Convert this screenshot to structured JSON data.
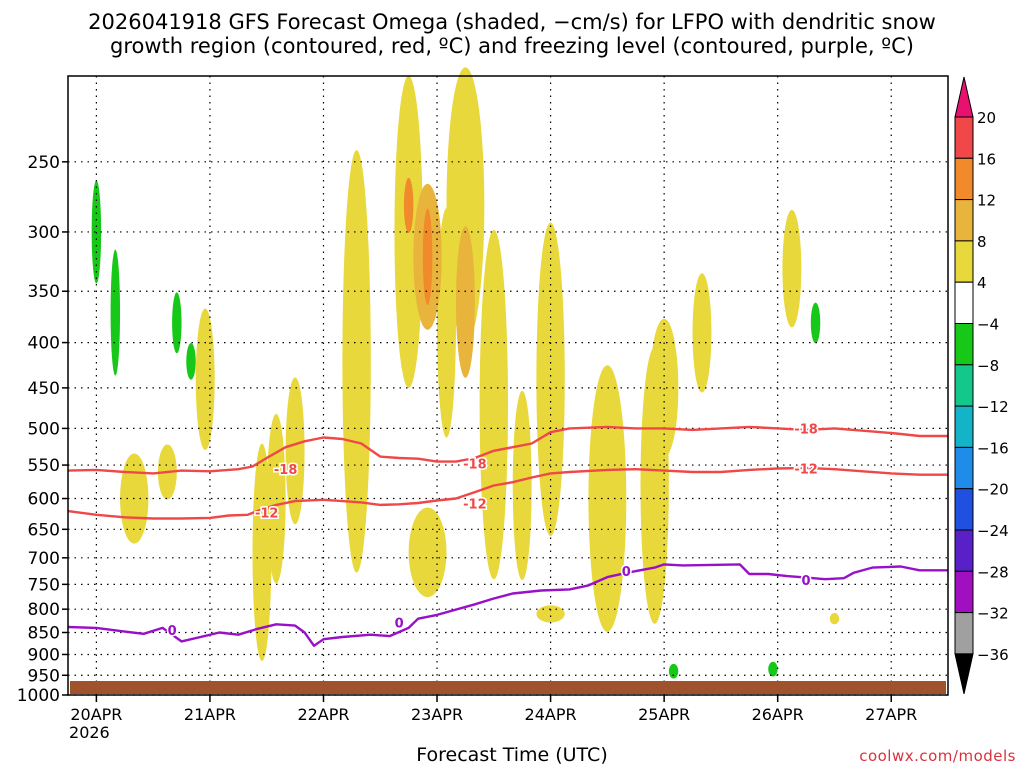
{
  "chart_data": {
    "type": "heatmap",
    "title_line1": "2026041918 GFS Forecast Omega (shaded, −cm/s) for LFPO with dendritic snow",
    "title_line2": "growth region (contoured, red, ºC) and freezing level (contoured, purple, ºC)",
    "xlabel": "Forecast Time (UTC)",
    "credit": "coolwx.com/models",
    "ylim": [
      1000,
      200
    ],
    "y_ticks": [
      250,
      300,
      350,
      400,
      450,
      500,
      550,
      600,
      650,
      700,
      750,
      800,
      850,
      900,
      950,
      1000
    ],
    "x_ticks": [
      {
        "t": 0,
        "label": "20APR",
        "sub": "2026"
      },
      {
        "t": 24,
        "label": "21APR",
        "sub": ""
      },
      {
        "t": 48,
        "label": "22APR",
        "sub": ""
      },
      {
        "t": 72,
        "label": "23APR",
        "sub": ""
      },
      {
        "t": 96,
        "label": "24APR",
        "sub": ""
      },
      {
        "t": 120,
        "label": "25APR",
        "sub": ""
      },
      {
        "t": 144,
        "label": "26APR",
        "sub": ""
      },
      {
        "t": 168,
        "label": "27APR",
        "sub": ""
      }
    ],
    "xlim": [
      -6,
      180
    ],
    "colorbar": {
      "levels": [
        "20",
        "16",
        "12",
        "8",
        "4",
        "−4",
        "−8",
        "−12",
        "−16",
        "−20",
        "−24",
        "−28",
        "−32",
        "−36"
      ],
      "colors": [
        "#e8116f",
        "#f04848",
        "#f08a2a",
        "#e8b43c",
        "#e8d83c",
        "#ffffff",
        "#18c818",
        "#14c88c",
        "#14b4c8",
        "#1e8ce8",
        "#2050e0",
        "#5a20c8",
        "#a010c0",
        "#a0a0a0",
        "#000000"
      ]
    },
    "series": [
      {
        "name": "-18",
        "color": "#f04848",
        "points": [
          [
            -6,
            558
          ],
          [
            0,
            557
          ],
          [
            6,
            560
          ],
          [
            12,
            562
          ],
          [
            18,
            558
          ],
          [
            24,
            559
          ],
          [
            30,
            556
          ],
          [
            33,
            552
          ],
          [
            36,
            540
          ],
          [
            40,
            525
          ],
          [
            44,
            517
          ],
          [
            48,
            512
          ],
          [
            52,
            514
          ],
          [
            56,
            520
          ],
          [
            60,
            538
          ],
          [
            64,
            540
          ],
          [
            68,
            541
          ],
          [
            72,
            545
          ],
          [
            76,
            545
          ],
          [
            80,
            540
          ],
          [
            84,
            530
          ],
          [
            88,
            525
          ],
          [
            92,
            520
          ],
          [
            96,
            505
          ],
          [
            100,
            500
          ],
          [
            108,
            498
          ],
          [
            114,
            500
          ],
          [
            120,
            500
          ],
          [
            126,
            502
          ],
          [
            132,
            500
          ],
          [
            138,
            498
          ],
          [
            144,
            500
          ],
          [
            150,
            502
          ],
          [
            156,
            500
          ],
          [
            162,
            503
          ],
          [
            168,
            506
          ],
          [
            174,
            510
          ],
          [
            180,
            510
          ]
        ],
        "labels": [
          [
            40,
            556
          ],
          [
            80,
            548
          ],
          [
            150,
            500
          ]
        ]
      },
      {
        "name": "-12",
        "color": "#f04848",
        "points": [
          [
            -6,
            620
          ],
          [
            0,
            626
          ],
          [
            6,
            630
          ],
          [
            12,
            632
          ],
          [
            18,
            632
          ],
          [
            24,
            631
          ],
          [
            28,
            627
          ],
          [
            32,
            626
          ],
          [
            34,
            620
          ],
          [
            38,
            610
          ],
          [
            42,
            604
          ],
          [
            48,
            602
          ],
          [
            52,
            604
          ],
          [
            56,
            606
          ],
          [
            60,
            610
          ],
          [
            64,
            609
          ],
          [
            68,
            607
          ],
          [
            72,
            603
          ],
          [
            76,
            600
          ],
          [
            80,
            590
          ],
          [
            84,
            580
          ],
          [
            88,
            575
          ],
          [
            92,
            568
          ],
          [
            96,
            562
          ],
          [
            100,
            560
          ],
          [
            108,
            557
          ],
          [
            114,
            556
          ],
          [
            120,
            558
          ],
          [
            126,
            560
          ],
          [
            132,
            560
          ],
          [
            138,
            557
          ],
          [
            144,
            555
          ],
          [
            150,
            554
          ],
          [
            156,
            556
          ],
          [
            162,
            559
          ],
          [
            168,
            562
          ],
          [
            174,
            564
          ],
          [
            180,
            564
          ]
        ],
        "labels": [
          [
            36,
            622
          ],
          [
            80,
            608
          ],
          [
            150,
            555
          ]
        ]
      },
      {
        "name": "0",
        "color": "#9810c8",
        "points": [
          [
            -6,
            838
          ],
          [
            0,
            840
          ],
          [
            6,
            848
          ],
          [
            10,
            853
          ],
          [
            14,
            840
          ],
          [
            18,
            870
          ],
          [
            22,
            860
          ],
          [
            26,
            850
          ],
          [
            30,
            855
          ],
          [
            34,
            842
          ],
          [
            38,
            832
          ],
          [
            42,
            835
          ],
          [
            44,
            850
          ],
          [
            46,
            880
          ],
          [
            48,
            865
          ],
          [
            52,
            860
          ],
          [
            58,
            855
          ],
          [
            62,
            858
          ],
          [
            66,
            840
          ],
          [
            68,
            820
          ],
          [
            72,
            812
          ],
          [
            80,
            790
          ],
          [
            84,
            778
          ],
          [
            88,
            768
          ],
          [
            94,
            762
          ],
          [
            100,
            760
          ],
          [
            104,
            752
          ],
          [
            108,
            736
          ],
          [
            112,
            728
          ],
          [
            118,
            718
          ],
          [
            120,
            712
          ],
          [
            124,
            714
          ],
          [
            130,
            713
          ],
          [
            136,
            712
          ],
          [
            138,
            730
          ],
          [
            142,
            730
          ],
          [
            146,
            734
          ],
          [
            150,
            737
          ],
          [
            154,
            740
          ],
          [
            158,
            738
          ],
          [
            160,
            728
          ],
          [
            164,
            718
          ],
          [
            170,
            716
          ],
          [
            174,
            723
          ],
          [
            180,
            723
          ]
        ],
        "labels": [
          [
            16,
            845
          ],
          [
            64,
            828
          ],
          [
            112,
            724
          ],
          [
            150,
            742
          ]
        ]
      }
    ],
    "shaded_regions": [
      {
        "level": "4",
        "cx": 55,
        "cy": 420,
        "rx": 3,
        "ry": 210
      },
      {
        "level": "4",
        "cx": 66,
        "cy": 300,
        "rx": 3,
        "ry": 150
      },
      {
        "level": "4",
        "cx": 74,
        "cy": 380,
        "rx": 2,
        "ry": 110
      },
      {
        "level": "4",
        "cx": 78,
        "cy": 280,
        "rx": 4,
        "ry": 130
      },
      {
        "level": "4",
        "cx": 84,
        "cy": 470,
        "rx": 3,
        "ry": 200
      },
      {
        "level": "4",
        "cx": 96,
        "cy": 440,
        "rx": 3,
        "ry": 170
      },
      {
        "level": "4",
        "cx": 108,
        "cy": 600,
        "rx": 4,
        "ry": 200
      },
      {
        "level": "4",
        "cx": 118,
        "cy": 580,
        "rx": 3,
        "ry": 200
      },
      {
        "level": "4",
        "cx": 120,
        "cy": 450,
        "rx": 3,
        "ry": 80
      },
      {
        "level": "4",
        "cx": 128,
        "cy": 390,
        "rx": 2,
        "ry": 60
      },
      {
        "level": "4",
        "cx": 147,
        "cy": 330,
        "rx": 2,
        "ry": 50
      },
      {
        "level": "4",
        "cx": 8,
        "cy": 600,
        "rx": 3,
        "ry": 70
      },
      {
        "level": "4",
        "cx": 15,
        "cy": 560,
        "rx": 2,
        "ry": 40
      },
      {
        "level": "4",
        "cx": 23,
        "cy": 440,
        "rx": 2,
        "ry": 80
      },
      {
        "level": "4",
        "cx": 35,
        "cy": 690,
        "rx": 2,
        "ry": 190
      },
      {
        "level": "4",
        "cx": 38,
        "cy": 600,
        "rx": 2,
        "ry": 130
      },
      {
        "level": "4",
        "cx": 42,
        "cy": 530,
        "rx": 2,
        "ry": 100
      },
      {
        "level": "4",
        "cx": 90,
        "cy": 580,
        "rx": 2,
        "ry": 140
      },
      {
        "level": "4",
        "cx": 96,
        "cy": 810,
        "rx": 3,
        "ry": 18
      },
      {
        "level": "4",
        "cx": 156,
        "cy": 820,
        "rx": 1,
        "ry": 12
      },
      {
        "level": "4",
        "cx": 70,
        "cy": 690,
        "rx": 4,
        "ry": 80
      },
      {
        "level": "8",
        "cx": 70,
        "cy": 320,
        "rx": 3,
        "ry": 60
      },
      {
        "level": "8",
        "cx": 78,
        "cy": 360,
        "rx": 2,
        "ry": 70
      },
      {
        "level": "12",
        "cx": 70,
        "cy": 320,
        "rx": 1,
        "ry": 40
      },
      {
        "level": "12",
        "cx": 66,
        "cy": 280,
        "rx": 1,
        "ry": 20
      },
      {
        "level": "−4",
        "cx": 0,
        "cy": 300,
        "rx": 1,
        "ry": 40
      },
      {
        "level": "−4",
        "cx": 4,
        "cy": 370,
        "rx": 1,
        "ry": 60
      },
      {
        "level": "−4",
        "cx": 17,
        "cy": 380,
        "rx": 1,
        "ry": 30
      },
      {
        "level": "−4",
        "cx": 20,
        "cy": 420,
        "rx": 1,
        "ry": 20
      },
      {
        "level": "−4",
        "cx": 152,
        "cy": 380,
        "rx": 1,
        "ry": 20
      },
      {
        "level": "−4",
        "cx": 122,
        "cy": 940,
        "rx": 1,
        "ry": 18
      },
      {
        "level": "−4",
        "cx": 143,
        "cy": 935,
        "rx": 1,
        "ry": 18
      }
    ],
    "ground_color": "#a0522d"
  }
}
